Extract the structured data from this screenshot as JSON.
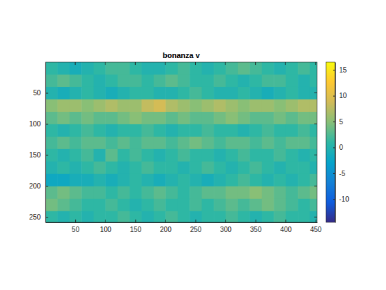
{
  "chart_data": {
    "type": "heatmap",
    "title": "bonanza v",
    "x_edges": [
      0.5,
      20.5,
      40.5,
      60.5,
      80.5,
      100.5,
      120.5,
      140.5,
      160.5,
      180.5,
      200.5,
      220.5,
      240.5,
      260.5,
      280.5,
      300.5,
      320.5,
      340.5,
      360.5,
      380.5,
      400.5,
      420.5,
      440.5,
      452.5
    ],
    "y_edges": [
      0.5,
      20.5,
      40.5,
      60.5,
      80.5,
      100.5,
      120.5,
      140.5,
      160.5,
      180.5,
      200.5,
      220.5,
      240.5,
      258.5
    ],
    "z": [
      [
        1,
        0,
        -1,
        0,
        1,
        2,
        2,
        1,
        0,
        0,
        1,
        2,
        1,
        0,
        1,
        2,
        3,
        2,
        1,
        0,
        1,
        2,
        1
      ],
      [
        2,
        3,
        2,
        1,
        0,
        1,
        2,
        2,
        1,
        2,
        3,
        2,
        1,
        1,
        2,
        1,
        0,
        1,
        2,
        2,
        1,
        0,
        1
      ],
      [
        0,
        -1,
        0,
        1,
        0,
        -1,
        0,
        1,
        1,
        0,
        0,
        1,
        2,
        1,
        0,
        0,
        1,
        0,
        -1,
        0,
        1,
        0,
        0
      ],
      [
        5,
        6,
        6,
        5,
        6,
        7,
        6,
        6,
        8,
        9,
        7,
        6,
        5,
        6,
        7,
        6,
        5,
        6,
        6,
        5,
        6,
        7,
        7
      ],
      [
        3,
        4,
        3,
        4,
        3,
        3,
        4,
        5,
        4,
        4,
        3,
        4,
        3,
        3,
        4,
        5,
        4,
        3,
        3,
        4,
        3,
        4,
        4
      ],
      [
        1,
        0,
        1,
        2,
        1,
        0,
        1,
        1,
        2,
        1,
        0,
        1,
        1,
        2,
        1,
        1,
        0,
        1,
        2,
        1,
        1,
        2,
        1
      ],
      [
        2,
        3,
        2,
        3,
        3,
        2,
        3,
        2,
        3,
        3,
        2,
        3,
        4,
        3,
        2,
        3,
        3,
        2,
        3,
        2,
        3,
        3,
        2
      ],
      [
        1,
        0,
        1,
        2,
        0,
        3,
        1,
        2,
        1,
        0,
        1,
        2,
        1,
        1,
        0,
        1,
        2,
        1,
        1,
        2,
        1,
        0,
        1
      ],
      [
        0,
        1,
        0,
        1,
        2,
        1,
        0,
        1,
        2,
        1,
        1,
        0,
        1,
        2,
        1,
        0,
        1,
        2,
        1,
        0,
        1,
        1,
        0
      ],
      [
        -2,
        -2,
        -1,
        -1,
        0,
        -1,
        0,
        1,
        0,
        -1,
        0,
        1,
        0,
        -1,
        0,
        1,
        2,
        1,
        0,
        1,
        0,
        1,
        2
      ],
      [
        3,
        4,
        3,
        2,
        2,
        1,
        2,
        1,
        2,
        3,
        2,
        1,
        2,
        3,
        3,
        4,
        4,
        5,
        4,
        3,
        2,
        3,
        4
      ],
      [
        4,
        3,
        2,
        1,
        1,
        2,
        1,
        0,
        1,
        2,
        1,
        1,
        2,
        1,
        2,
        3,
        2,
        3,
        4,
        3,
        2,
        1,
        2
      ],
      [
        1,
        0,
        1,
        0,
        1,
        1,
        2,
        1,
        0,
        1,
        2,
        1,
        0,
        1,
        1,
        2,
        1,
        0,
        1,
        2,
        1,
        1,
        0
      ]
    ],
    "xlim": [
      0.5,
      452.5
    ],
    "ylim": [
      0.5,
      258.5
    ],
    "xticks": [
      50,
      100,
      150,
      200,
      250,
      300,
      350,
      400,
      450
    ],
    "yticks": [
      50,
      100,
      150,
      200,
      250
    ],
    "colorbar": {
      "range": [
        -14.5,
        16.5
      ],
      "ticks": [
        -10,
        -5,
        0,
        5,
        10,
        15
      ]
    }
  }
}
